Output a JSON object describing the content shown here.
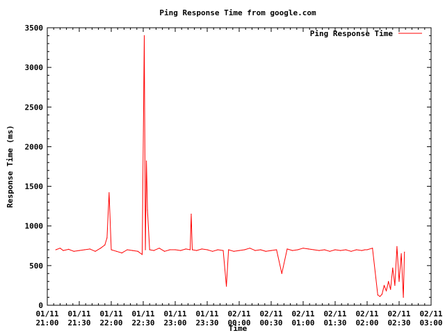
{
  "chart_data": {
    "type": "line",
    "title": "Ping Response Time from google.com",
    "xlabel": "Time",
    "ylabel": "Response Time (ms)",
    "legend_position": "top-right",
    "grid": false,
    "ylim": [
      0,
      3500
    ],
    "xlim": [
      "01/11 21:00",
      "02/11 03:00"
    ],
    "y_ticks": [
      "0",
      "500",
      "1000",
      "1500",
      "2000",
      "2500",
      "3000",
      "3500"
    ],
    "x_ticks": [
      [
        "01/11",
        "21:00"
      ],
      [
        "01/11",
        "21:30"
      ],
      [
        "01/11",
        "22:00"
      ],
      [
        "01/11",
        "22:30"
      ],
      [
        "01/11",
        "23:00"
      ],
      [
        "01/11",
        "23:30"
      ],
      [
        "02/11",
        "00:00"
      ],
      [
        "02/11",
        "00:30"
      ],
      [
        "02/11",
        "01:00"
      ],
      [
        "02/11",
        "01:30"
      ],
      [
        "02/11",
        "02:00"
      ],
      [
        "02/11",
        "02:30"
      ],
      [
        "02/11",
        "03:00"
      ]
    ],
    "series": [
      {
        "name": "Ping Response Time",
        "color": "#ff0000",
        "x": [
          "01/11 21:08",
          "01/11 21:12",
          "01/11 21:15",
          "01/11 21:20",
          "01/11 21:25",
          "01/11 21:30",
          "01/11 21:35",
          "01/11 21:40",
          "01/11 21:45",
          "01/11 21:50",
          "01/11 21:54",
          "01/11 21:56",
          "01/11 21:58",
          "01/11 22:00",
          "01/11 22:05",
          "01/11 22:10",
          "01/11 22:15",
          "01/11 22:20",
          "01/11 22:25",
          "01/11 22:29",
          "01/11 22:31",
          "01/11 22:32",
          "01/11 22:33",
          "01/11 22:34",
          "01/11 22:36",
          "01/11 22:40",
          "01/11 22:45",
          "01/11 22:50",
          "01/11 22:55",
          "01/11 23:00",
          "01/11 23:05",
          "01/11 23:10",
          "01/11 23:14",
          "01/11 23:15",
          "01/11 23:16",
          "01/11 23:20",
          "01/11 23:25",
          "01/11 23:30",
          "01/11 23:35",
          "01/11 23:40",
          "01/11 23:45",
          "01/11 23:48",
          "01/11 23:50",
          "01/11 23:55",
          "02/11 00:00",
          "02/11 00:05",
          "02/11 00:10",
          "02/11 00:15",
          "02/11 00:20",
          "02/11 00:25",
          "02/11 00:30",
          "02/11 00:35",
          "02/11 00:40",
          "02/11 00:45",
          "02/11 00:50",
          "02/11 00:55",
          "02/11 01:00",
          "02/11 01:05",
          "02/11 01:10",
          "02/11 01:15",
          "02/11 01:20",
          "02/11 01:25",
          "02/11 01:30",
          "02/11 01:35",
          "02/11 01:40",
          "02/11 01:45",
          "02/11 01:50",
          "02/11 01:55",
          "02/11 01:58",
          "02/11 02:00",
          "02/11 02:05",
          "02/11 02:10",
          "02/11 02:12",
          "02/11 02:14",
          "02/11 02:16",
          "02/11 02:18",
          "02/11 02:20",
          "02/11 02:22",
          "02/11 02:24",
          "02/11 02:26",
          "02/11 02:28",
          "02/11 02:30",
          "02/11 02:32",
          "02/11 02:34",
          "02/11 02:35"
        ],
        "values": [
          700,
          720,
          690,
          705,
          680,
          690,
          700,
          710,
          680,
          720,
          760,
          850,
          1420,
          700,
          680,
          660,
          700,
          690,
          680,
          640,
          3400,
          700,
          1820,
          1200,
          700,
          690,
          720,
          680,
          700,
          700,
          690,
          710,
          700,
          1150,
          700,
          690,
          710,
          700,
          680,
          700,
          690,
          240,
          700,
          680,
          690,
          700,
          720,
          690,
          700,
          680,
          690,
          700,
          400,
          710,
          690,
          700,
          720,
          710,
          700,
          690,
          700,
          680,
          700,
          690,
          700,
          680,
          700,
          690,
          700,
          700,
          720,
          130,
          110,
          140,
          250,
          180,
          300,
          200,
          470,
          250,
          740,
          300,
          650,
          100,
          670
        ]
      }
    ]
  }
}
